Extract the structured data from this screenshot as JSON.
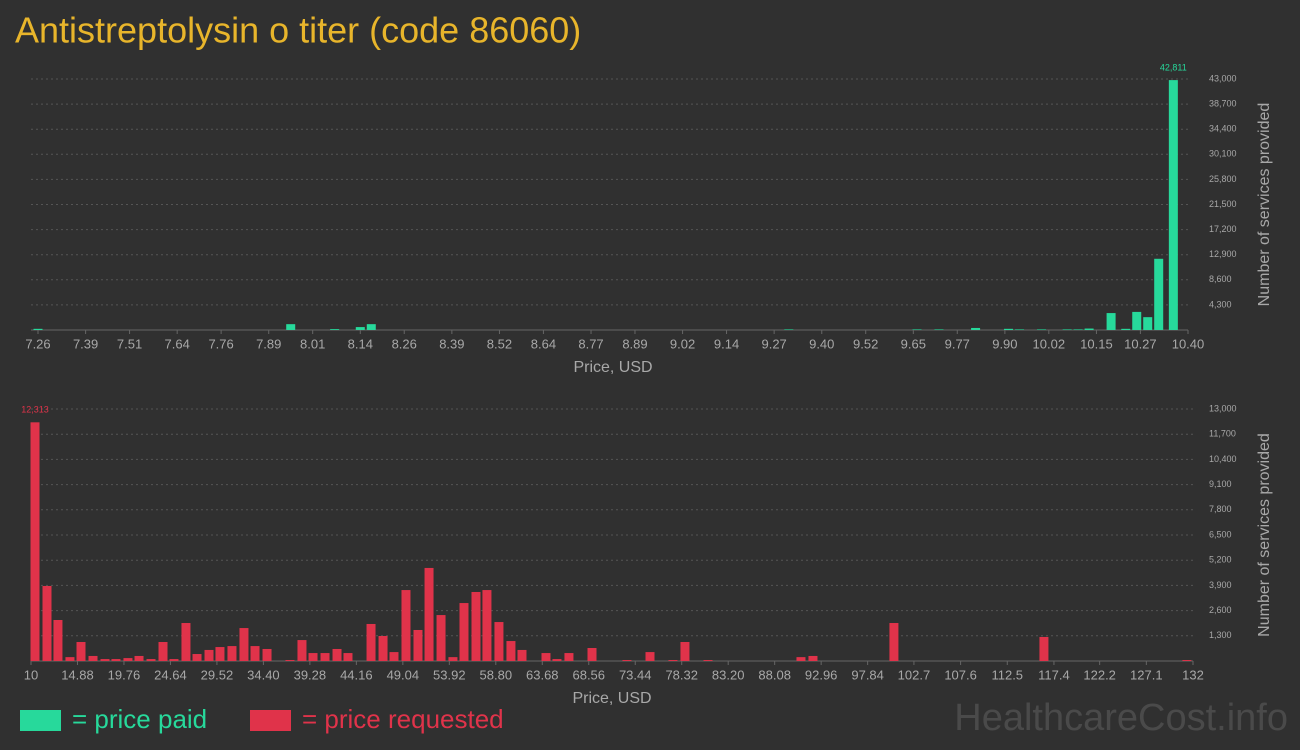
{
  "title": "Antistreptolysin o titer (code 86060)",
  "watermark": "HealthcareCost.info",
  "chart_data": [
    {
      "type": "bar",
      "x": [
        7.26,
        7.95,
        8.07,
        8.14,
        8.17,
        9.31,
        9.66,
        9.72,
        9.82,
        9.91,
        9.94,
        10.0,
        10.07,
        10.1,
        10.13,
        10.19,
        10.23,
        10.26,
        10.29,
        10.32,
        10.36
      ],
      "series": [
        {
          "name": "= price paid",
          "color": "#27d99b",
          "values": [
            200,
            1000,
            150,
            500,
            1000,
            100,
            100,
            100,
            350,
            200,
            100,
            100,
            100,
            100,
            250,
            2900,
            200,
            3100,
            2200,
            12200,
            42811
          ],
          "value_labels": [
            null,
            null,
            null,
            null,
            null,
            null,
            null,
            null,
            null,
            null,
            null,
            null,
            null,
            null,
            null,
            null,
            null,
            null,
            null,
            null,
            "42,811"
          ]
        }
      ],
      "xlim": [
        7.26,
        10.4
      ],
      "xticks": [
        7.26,
        7.39,
        7.51,
        7.64,
        7.76,
        7.89,
        8.01,
        8.14,
        8.26,
        8.39,
        8.52,
        8.64,
        8.77,
        8.89,
        9.02,
        9.14,
        9.27,
        {
          "value": 9.4,
          "label": "9.40"
        },
        9.52,
        9.65,
        9.77,
        {
          "value": 9.9,
          "label": "9.90"
        },
        10.02,
        10.15,
        10.27,
        {
          "value": 10.4,
          "label": "10.40"
        }
      ],
      "ylim": [
        0,
        43000
      ],
      "yticks": [
        {
          "value": 4300,
          "label": "4,300"
        },
        {
          "value": 8600,
          "label": "8,600"
        },
        {
          "value": 12900,
          "label": "12,900"
        },
        {
          "value": 17200,
          "label": "17,200"
        },
        {
          "value": 21500,
          "label": "21,500"
        },
        {
          "value": 25800,
          "label": "25,800"
        },
        {
          "value": 30100,
          "label": "30,100"
        },
        {
          "value": 34400,
          "label": "34,400"
        },
        {
          "value": 38700,
          "label": "38,700"
        },
        {
          "value": 43000,
          "label": "43,000"
        }
      ],
      "xlabel": "Price, USD",
      "ylabel": "Number of services provided",
      "grid": true
    },
    {
      "type": "bar",
      "x": [
        10.42,
        11.68,
        12.83,
        14.09,
        15.25,
        16.51,
        17.77,
        18.92,
        20.18,
        21.34,
        22.6,
        23.86,
        25.01,
        26.27,
        27.43,
        28.69,
        29.84,
        31.1,
        32.36,
        33.52,
        34.78,
        37.19,
        38.45,
        39.61,
        40.87,
        42.13,
        43.28,
        45.7,
        46.96,
        48.11,
        49.37,
        50.63,
        51.79,
        53.05,
        54.3,
        55.46,
        56.72,
        57.87,
        59.13,
        60.39,
        61.55,
        64.07,
        65.22,
        66.48,
        68.9,
        72.57,
        74.99,
        77.4,
        78.66,
        81.08,
        90.84,
        92.1,
        100.6,
        116.35,
        131.36
      ],
      "series": [
        {
          "name": "= price requested",
          "color": "#e0334a",
          "values": [
            12313,
            3870,
            2115,
            200,
            980,
            260,
            100,
            100,
            150,
            260,
            100,
            980,
            100,
            1960,
            360,
            570,
            720,
            770,
            1700,
            770,
            620,
            50,
            1080,
            410,
            410,
            620,
            410,
            1910,
            1290,
            460,
            3660,
            1600,
            4800,
            2370,
            200,
            2990,
            3560,
            3660,
            2010,
            1030,
            570,
            410,
            100,
            410,
            670,
            50,
            460,
            50,
            980,
            50,
            200,
            260,
            1960,
            1240,
            50
          ],
          "value_labels": [
            "12,313",
            null,
            null,
            null,
            null,
            null,
            null,
            null,
            null,
            null,
            null,
            null,
            null,
            null,
            null,
            null,
            null,
            null,
            null,
            null,
            null,
            null,
            null,
            null,
            null,
            null,
            null,
            null,
            null,
            null,
            null,
            null,
            null,
            null,
            null,
            null,
            null,
            null,
            null,
            null,
            null,
            null,
            null,
            null,
            null,
            null,
            null,
            null,
            null,
            null,
            null,
            null,
            null,
            null,
            null
          ]
        }
      ],
      "xlim": [
        10,
        132
      ],
      "xticks": [
        10,
        14.88,
        19.76,
        24.64,
        29.52,
        {
          "value": 34.4,
          "label": "34.40"
        },
        39.28,
        44.16,
        49.04,
        53.92,
        {
          "value": 58.8,
          "label": "58.80"
        },
        63.68,
        68.56,
        73.44,
        78.32,
        {
          "value": 83.2,
          "label": "83.20"
        },
        88.08,
        92.96,
        97.84,
        102.7,
        107.6,
        112.5,
        117.4,
        122.2,
        127.1,
        132
      ],
      "ylim": [
        0,
        13000
      ],
      "yticks": [
        {
          "value": 1300,
          "label": "1,300"
        },
        {
          "value": 2600,
          "label": "2,600"
        },
        {
          "value": 3900,
          "label": "3,900"
        },
        {
          "value": 5200,
          "label": "5,200"
        },
        {
          "value": 6500,
          "label": "6,500"
        },
        {
          "value": 7800,
          "label": "7,800"
        },
        {
          "value": 9100,
          "label": "9,100"
        },
        {
          "value": 10400,
          "label": "10,400"
        },
        {
          "value": 11700,
          "label": "11,700"
        },
        {
          "value": 13000,
          "label": "13,000"
        }
      ],
      "xlabel": "Price, USD",
      "ylabel": "Number of services provided",
      "grid": true
    }
  ]
}
